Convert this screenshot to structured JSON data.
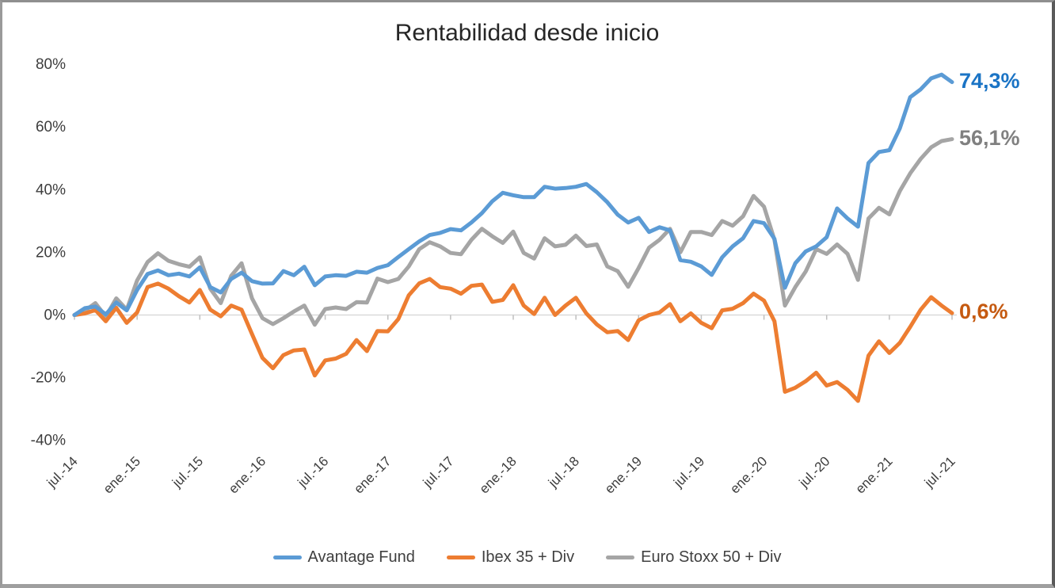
{
  "chart_data": {
    "type": "line",
    "title": "Rentabilidad desde inicio",
    "xlabel": "",
    "ylabel": "",
    "x_start": "jul.-14",
    "x_end": "jul.-21",
    "x_frequency": "monthly",
    "x_tick_labels": [
      "jul.-14",
      "ene.-15",
      "jul.-15",
      "ene.-16",
      "jul.-16",
      "ene.-17",
      "jul.-17",
      "ene.-18",
      "jul.-18",
      "ene.-19",
      "jul.-19",
      "ene.-20",
      "jul.-20",
      "ene.-21",
      "jul.-21"
    ],
    "x_tick_month_step": 6,
    "y_tick_labels": [
      "80%",
      "60%",
      "40%",
      "20%",
      "0%",
      "-20%",
      "-40%"
    ],
    "y_tick_values": [
      80,
      60,
      40,
      20,
      0,
      -20,
      -40
    ],
    "ylim": [
      -45,
      85
    ],
    "grid": "zero-line-only",
    "legend_position": "bottom",
    "axis_color": "#d9d9d9",
    "tick_color": "#bfbfbf",
    "axis_text_color": "#3d3d3d",
    "series": [
      {
        "name": "Avantage Fund",
        "color": "#5B9BD5",
        "end_label": "74,3%",
        "end_label_color": "#1B74C5",
        "values": [
          0,
          2.2,
          2.7,
          0.2,
          4.0,
          1.5,
          8.0,
          13.1,
          14.2,
          12.7,
          13.2,
          12.3,
          15.2,
          8.9,
          7.2,
          11.5,
          13.5,
          10.8,
          10.0,
          10.1,
          14.0,
          12.7,
          15.4,
          9.5,
          12.3,
          12.7,
          12.5,
          13.8,
          13.5,
          15.0,
          15.9,
          18.5,
          21.0,
          23.5,
          25.5,
          26.2,
          27.4,
          27.0,
          29.5,
          32.5,
          36.3,
          39.0,
          38.2,
          37.6,
          37.6,
          40.9,
          40.3,
          40.5,
          40.9,
          41.8,
          39.2,
          36.0,
          32.0,
          29.5,
          31.0,
          26.5,
          28.0,
          27.0,
          17.5,
          17.0,
          15.5,
          12.8,
          18.4,
          21.9,
          24.5,
          30.0,
          29.3,
          24.3,
          8.7,
          16.5,
          20.3,
          21.9,
          24.8,
          34.0,
          30.8,
          28.2,
          48.5,
          52.0,
          52.6,
          59.5,
          69.5,
          72.0,
          75.5,
          76.7,
          74.3
        ]
      },
      {
        "name": "Ibex 35 + Div",
        "color": "#ED7D31",
        "end_label": "0,6%",
        "end_label_color": "#C55A11",
        "values": [
          0,
          0.5,
          1.6,
          -2.0,
          2.3,
          -2.5,
          0.8,
          8.9,
          10.0,
          8.4,
          6.0,
          4.0,
          8.0,
          1.7,
          -0.4,
          3.0,
          1.7,
          -6.1,
          -13.7,
          -17.0,
          -12.8,
          -11.3,
          -11.0,
          -19.3,
          -14.5,
          -13.9,
          -12.4,
          -8.0,
          -11.5,
          -5.1,
          -5.2,
          -1.3,
          6.3,
          10.1,
          11.5,
          8.9,
          8.4,
          6.8,
          9.3,
          9.7,
          4.2,
          4.8,
          9.5,
          3.0,
          0.3,
          5.5,
          0.0,
          3.0,
          5.5,
          0.5,
          -3.0,
          -5.5,
          -5.1,
          -8.0,
          -1.7,
          0.0,
          0.8,
          3.5,
          -2.0,
          0.5,
          -2.5,
          -4.2,
          1.5,
          2.0,
          3.8,
          6.8,
          4.6,
          -2.0,
          -24.5,
          -23.2,
          -21.1,
          -18.4,
          -22.5,
          -21.4,
          -23.9,
          -27.4,
          -13.0,
          -8.4,
          -12.1,
          -8.9,
          -3.8,
          1.7,
          5.7,
          3.0,
          0.6
        ]
      },
      {
        "name": "Euro Stoxx 50 + Div",
        "color": "#A5A5A5",
        "end_label": "56,1%",
        "end_label_color": "#808080",
        "values": [
          0,
          1.4,
          3.8,
          -0.5,
          5.3,
          1.7,
          11.0,
          16.9,
          19.7,
          17.3,
          16.2,
          15.4,
          18.4,
          8.4,
          3.8,
          12.5,
          16.5,
          5.3,
          -1.0,
          -2.9,
          -1.0,
          1.1,
          3.0,
          -3.1,
          1.9,
          2.4,
          1.9,
          4.1,
          4.0,
          11.6,
          10.5,
          11.5,
          15.5,
          21.0,
          23.2,
          21.9,
          19.8,
          19.4,
          24.0,
          27.5,
          25.1,
          23.0,
          26.6,
          19.8,
          18.0,
          24.5,
          21.9,
          22.4,
          25.3,
          22.0,
          22.5,
          15.5,
          14.0,
          9.0,
          15.0,
          21.5,
          24.0,
          27.5,
          20.0,
          26.5,
          26.5,
          25.5,
          30.0,
          28.5,
          31.5,
          38.0,
          34.6,
          24.0,
          3.0,
          8.9,
          13.9,
          21.0,
          19.5,
          22.5,
          19.5,
          11.2,
          30.8,
          34.2,
          32.1,
          39.5,
          45.2,
          49.8,
          53.5,
          55.5,
          56.1
        ]
      }
    ]
  }
}
